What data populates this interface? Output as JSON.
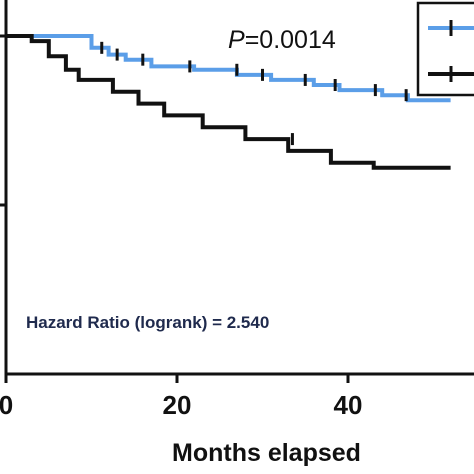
{
  "chart_data": {
    "type": "line",
    "title": "",
    "xlabel": "Months elapsed",
    "ylabel": "",
    "xlim": [
      0,
      50
    ],
    "ylim": [
      0,
      100
    ],
    "x_ticks": [
      0,
      20,
      40
    ],
    "x_tick_labels": [
      "0",
      "20",
      "40"
    ],
    "grid": false,
    "legend": {
      "placement": "top-right",
      "entries": [
        "",
        ""
      ]
    },
    "annotations": {
      "p_label": "P",
      "p_value": "=0.0014",
      "hazard_ratio": "Hazard Ratio (logrank) = 2.540"
    },
    "series": [
      {
        "color": "#5b9ee8",
        "steps": [
          [
            0,
            100
          ],
          [
            10,
            100
          ],
          [
            10,
            93
          ],
          [
            12,
            93
          ],
          [
            12,
            89
          ],
          [
            14,
            89
          ],
          [
            14,
            86
          ],
          [
            17,
            86
          ],
          [
            17,
            82
          ],
          [
            22,
            82
          ],
          [
            22,
            80
          ],
          [
            27,
            80
          ],
          [
            27,
            77
          ],
          [
            31,
            77
          ],
          [
            31,
            74
          ],
          [
            36,
            74
          ],
          [
            36,
            71
          ],
          [
            39,
            71
          ],
          [
            39,
            68
          ],
          [
            44,
            68
          ],
          [
            44,
            65
          ],
          [
            47,
            65
          ],
          [
            47,
            62
          ],
          [
            52,
            62
          ]
        ],
        "censors": [
          [
            11.2,
            93
          ],
          [
            13,
            89
          ],
          [
            16,
            86
          ],
          [
            21.5,
            82
          ],
          [
            27,
            80
          ],
          [
            30,
            77
          ],
          [
            35,
            74
          ],
          [
            38.5,
            71
          ],
          [
            43.2,
            68
          ],
          [
            46.8,
            65
          ]
        ]
      },
      {
        "color": "#111111",
        "steps": [
          [
            0,
            100
          ],
          [
            3,
            100
          ],
          [
            3,
            97
          ],
          [
            5,
            97
          ],
          [
            5,
            88
          ],
          [
            7,
            88
          ],
          [
            7,
            80
          ],
          [
            8.5,
            80
          ],
          [
            8.5,
            74
          ],
          [
            12.5,
            74
          ],
          [
            12.5,
            67
          ],
          [
            15.5,
            67
          ],
          [
            15.5,
            60
          ],
          [
            18.5,
            60
          ],
          [
            18.5,
            53
          ],
          [
            23,
            53
          ],
          [
            23,
            46
          ],
          [
            28,
            46
          ],
          [
            28,
            39
          ],
          [
            33,
            39
          ],
          [
            33,
            32
          ],
          [
            38,
            32
          ],
          [
            38,
            25
          ],
          [
            43,
            25
          ],
          [
            43,
            22
          ],
          [
            52,
            22
          ]
        ],
        "censors": [
          [
            33.5,
            39
          ]
        ]
      }
    ]
  }
}
